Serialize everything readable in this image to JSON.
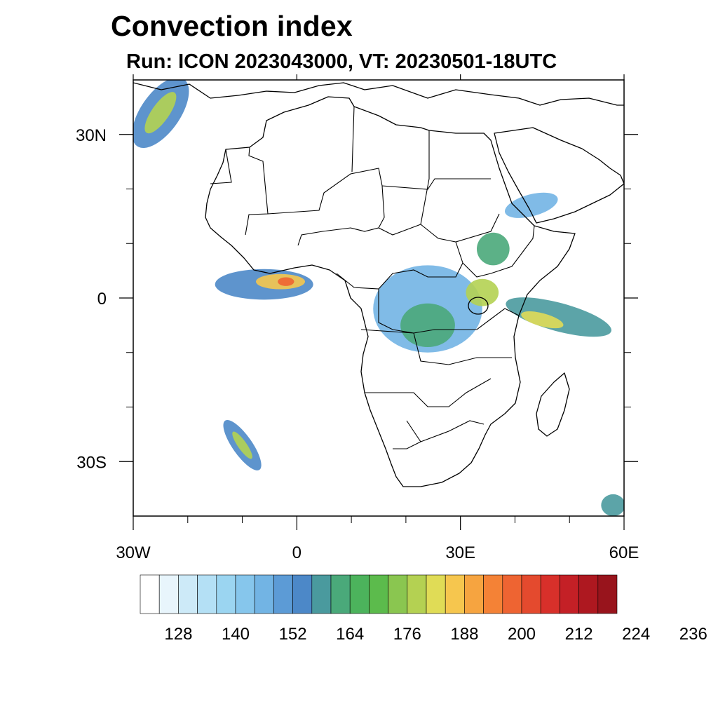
{
  "title": "Convection index",
  "subtitle": "Run: ICON 2023043000,  VT: 20230501-18UTC",
  "map": {
    "projection": "lat-lon",
    "lon_range": [
      -30,
      60
    ],
    "lat_range": [
      -40,
      40
    ],
    "x_ticks": [
      {
        "lon": -30,
        "label": "30W"
      },
      {
        "lon": 0,
        "label": "0"
      },
      {
        "lon": 30,
        "label": "30E"
      },
      {
        "lon": 60,
        "label": "60E"
      }
    ],
    "y_ticks": [
      {
        "lat": 30,
        "label": "30N"
      },
      {
        "lat": 0,
        "label": "0"
      },
      {
        "lat": -30,
        "label": "30S"
      }
    ],
    "minor_lon_ticks": [
      -20,
      -10,
      10,
      20,
      40,
      50
    ],
    "minor_lat_ticks": [
      20,
      10,
      -10,
      -20
    ]
  },
  "colorbar": {
    "colors": [
      "#ffffff",
      "#e8f5fc",
      "#cdeaf8",
      "#b4e0f5",
      "#9bd5f1",
      "#86c6ec",
      "#72b4e4",
      "#5c9bd6",
      "#4c88c8",
      "#4a9a9e",
      "#4aa97a",
      "#4cb35c",
      "#5cbb4c",
      "#8ac650",
      "#b4d152",
      "#e0dc56",
      "#f6c64e",
      "#f6a440",
      "#f48236",
      "#ee6432",
      "#e44a2e",
      "#d8302a",
      "#c42026",
      "#ae1820",
      "#98141c"
    ],
    "labels": [
      "128",
      "140",
      "152",
      "164",
      "176",
      "188",
      "200",
      "212",
      "224",
      "236"
    ],
    "label_every": 3,
    "label_start_boundary": 2
  },
  "convection_cells": [
    {
      "lon": -25,
      "lat": 34,
      "rx": 3.6,
      "ry": 7.5,
      "rot": 35,
      "level": 8
    },
    {
      "lon": -25,
      "lat": 34,
      "rx": 1.6,
      "ry": 4.5,
      "rot": 35,
      "level": 14
    },
    {
      "lon": -6,
      "lat": 2.5,
      "rx": 9,
      "ry": 2.8,
      "rot": 0,
      "level": 8
    },
    {
      "lon": -3,
      "lat": 3,
      "rx": 4.5,
      "ry": 1.4,
      "rot": 0,
      "level": 16
    },
    {
      "lon": -2,
      "lat": 3,
      "rx": 1.5,
      "ry": 0.8,
      "rot": 0,
      "level": 19
    },
    {
      "lon": 24,
      "lat": -2,
      "rx": 10,
      "ry": 8,
      "rot": 0,
      "level": 6
    },
    {
      "lon": 24,
      "lat": -5,
      "rx": 5,
      "ry": 4,
      "rot": 0,
      "level": 10
    },
    {
      "lon": 36,
      "lat": 9,
      "rx": 3,
      "ry": 3,
      "rot": 0,
      "level": 10
    },
    {
      "lon": 34,
      "lat": 1,
      "rx": 3,
      "ry": 2.5,
      "rot": 0,
      "level": 14
    },
    {
      "lon": 48,
      "lat": -3.5,
      "rx": 10,
      "ry": 2.6,
      "rot": 15,
      "level": 9
    },
    {
      "lon": 45,
      "lat": -4,
      "rx": 4,
      "ry": 1.2,
      "rot": 15,
      "level": 15
    },
    {
      "lon": -10,
      "lat": -27,
      "rx": 1.8,
      "ry": 5.5,
      "rot": -35,
      "level": 8
    },
    {
      "lon": -10,
      "lat": -27,
      "rx": 0.8,
      "ry": 3,
      "rot": -35,
      "level": 14
    },
    {
      "lon": 43,
      "lat": 17,
      "rx": 5,
      "ry": 2,
      "rot": -15,
      "level": 6
    },
    {
      "lon": 58,
      "lat": -38,
      "rx": 2.2,
      "ry": 2,
      "rot": 0,
      "level": 9
    }
  ]
}
